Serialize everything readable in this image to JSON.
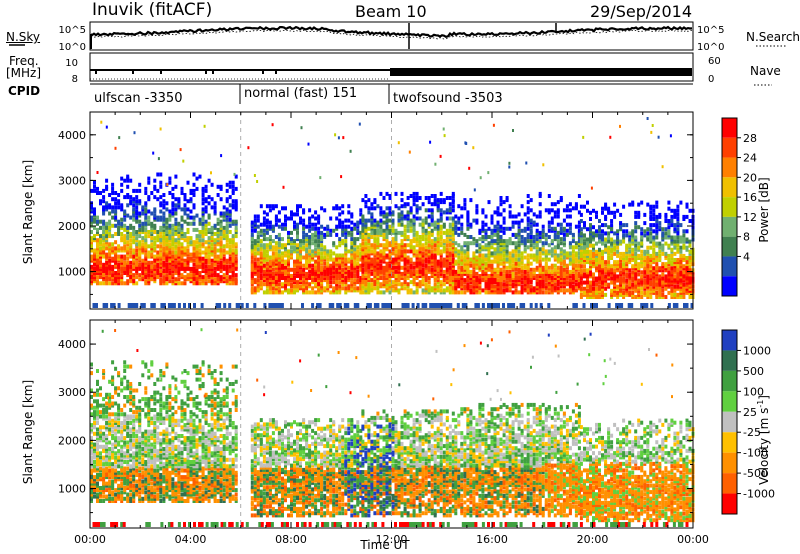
{
  "header": {
    "station": "Inuvik (fitACF)",
    "beam": "Beam 10",
    "date": "29/Sep/2014"
  },
  "strip_labels": {
    "nsky": "N.Sky",
    "nsearch": "N.Search",
    "freq_line1": "Freq.",
    "freq_line2": "[MHz]",
    "nave": "Nave",
    "cpid": "CPID",
    "nsky_ticks": [
      "10^5",
      "10^0"
    ],
    "nsearch_ticks": [
      "10^5",
      "10^0"
    ],
    "freq_ticks": [
      "10",
      "8"
    ],
    "nave_ticks": [
      "60",
      "0"
    ]
  },
  "cpid_segments": [
    {
      "label": "ulfscan -3350",
      "start_h": 0,
      "end_h": 6
    },
    {
      "label": "normal (fast) 151",
      "start_h": 6,
      "end_h": 12
    },
    {
      "label": "twofsound -3503",
      "start_h": 12,
      "end_h": 24
    }
  ],
  "colors": {
    "power": [
      "#0000ff",
      "#2050b0",
      "#408050",
      "#70b070",
      "#c0d000",
      "#f0c000",
      "#ff8000",
      "#ff4000",
      "#ff0000"
    ],
    "velocity": [
      "#ff0000",
      "#ff6000",
      "#ff9000",
      "#ffc000",
      "#c0c0c0",
      "#60d040",
      "#40a040",
      "#307050",
      "#2040c0"
    ],
    "ground_scatter": "#bbbbbb"
  },
  "chart_data": [
    {
      "type": "heatmap",
      "panel": "power",
      "xlabel": "",
      "ylabel": "Slant Range [km]",
      "x_range_hours": [
        0,
        24
      ],
      "y_range_km": [
        180,
        4500
      ],
      "y_ticks": [
        "4000",
        "3000",
        "2000",
        "1000"
      ],
      "colorbar_label": "Power [dB]",
      "colorbar_ticks": [
        "28",
        "24",
        "20",
        "16",
        "12",
        "8",
        "4"
      ],
      "scatter_bands": [
        {
          "start_h": 0.0,
          "end_h": 5.8,
          "low_km": 700,
          "high_km": 3100,
          "core_km": 1000
        },
        {
          "start_h": 6.4,
          "end_h": 10.8,
          "low_km": 500,
          "high_km": 2400,
          "core_km": 900
        },
        {
          "start_h": 10.8,
          "end_h": 14.5,
          "low_km": 500,
          "high_km": 2700,
          "core_km": 1100
        },
        {
          "start_h": 14.5,
          "end_h": 19.5,
          "low_km": 500,
          "high_km": 2700,
          "core_km": 700
        },
        {
          "start_h": 19.5,
          "end_h": 24.0,
          "low_km": 400,
          "high_km": 2500,
          "core_km": 800
        }
      ]
    },
    {
      "type": "heatmap",
      "panel": "velocity",
      "xlabel": "Time UT",
      "ylabel": "Slant Range [km]",
      "x_range_hours": [
        0,
        24
      ],
      "y_range_km": [
        180,
        4500
      ],
      "y_ticks": [
        "4000",
        "3000",
        "2000",
        "1000"
      ],
      "x_ticks": [
        "00:00",
        "04:00",
        "08:00",
        "12:00",
        "16:00",
        "20:00",
        "00:00"
      ],
      "colorbar_label": "Velocity [m s^-1]",
      "colorbar_ticks": [
        "1000",
        "500",
        "100",
        "25",
        "-25",
        "-100",
        "-500",
        "-1000"
      ],
      "scatter_bands": [
        {
          "start_h": 0.0,
          "end_h": 5.8,
          "low_km": 700,
          "high_km": 3600,
          "core_km": 1100
        },
        {
          "start_h": 6.4,
          "end_h": 10.8,
          "low_km": 400,
          "high_km": 2400,
          "core_km": 1200
        },
        {
          "start_h": 10.8,
          "end_h": 14.5,
          "low_km": 400,
          "high_km": 2600,
          "core_km": 1200
        },
        {
          "start_h": 14.5,
          "end_h": 19.5,
          "low_km": 400,
          "high_km": 2700,
          "core_km": 1200
        },
        {
          "start_h": 19.5,
          "end_h": 24.0,
          "low_km": 300,
          "high_km": 2400,
          "core_km": 800
        }
      ]
    }
  ]
}
